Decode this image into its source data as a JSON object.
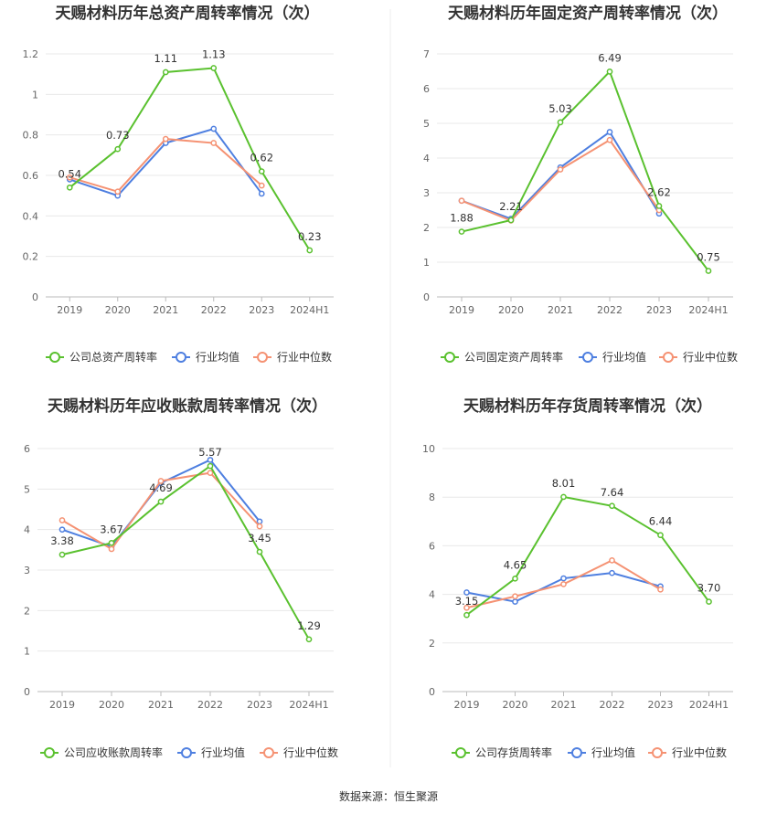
{
  "source": "数据来源：恒生聚源",
  "chart_data": [
    {
      "type": "line",
      "title": "天赐材料历年总资产周转率情况（次）",
      "categories": [
        "2019",
        "2020",
        "2021",
        "2022",
        "2023",
        "2024H1"
      ],
      "ylim": [
        0,
        1.2
      ],
      "yticks": [
        "0",
        "0.2",
        "0.4",
        "0.6",
        "0.8",
        "1",
        "1.2"
      ],
      "series": [
        {
          "name": "公司总资产周转率",
          "color": "#5ac12f",
          "values": [
            0.54,
            0.73,
            1.11,
            1.13,
            0.62,
            0.23
          ],
          "labels": [
            "0.54",
            "0.73",
            "1.11",
            "1.13",
            "0.62",
            "0.23"
          ]
        },
        {
          "name": "行业均值",
          "color": "#4e7fe0",
          "values": [
            0.58,
            0.5,
            0.76,
            0.83,
            0.51,
            null
          ]
        },
        {
          "name": "行业中位数",
          "color": "#f59273",
          "values": [
            0.59,
            0.52,
            0.78,
            0.76,
            0.55,
            null
          ]
        }
      ],
      "grid": true,
      "legend_position": "bottom"
    },
    {
      "type": "line",
      "title": "天赐材料历年固定资产周转率情况（次）",
      "categories": [
        "2019",
        "2020",
        "2021",
        "2022",
        "2023",
        "2024H1"
      ],
      "ylim": [
        0,
        7
      ],
      "yticks": [
        "0",
        "1",
        "2",
        "3",
        "4",
        "5",
        "6",
        "7"
      ],
      "series": [
        {
          "name": "公司固定资产周转率",
          "color": "#5ac12f",
          "values": [
            1.88,
            2.21,
            5.03,
            6.49,
            2.62,
            0.75
          ],
          "labels": [
            "1.88",
            "2.21",
            "5.03",
            "6.49",
            "2.62",
            "0.75"
          ]
        },
        {
          "name": "行业均值",
          "color": "#4e7fe0",
          "values": [
            2.77,
            2.25,
            3.73,
            4.75,
            2.4,
            null
          ]
        },
        {
          "name": "行业中位数",
          "color": "#f59273",
          "values": [
            2.77,
            2.2,
            3.67,
            4.52,
            2.5,
            null
          ]
        }
      ],
      "grid": true,
      "legend_position": "bottom"
    },
    {
      "type": "line",
      "title": "天赐材料历年应收账款周转率情况（次）",
      "categories": [
        "2019",
        "2020",
        "2021",
        "2022",
        "2023",
        "2024H1"
      ],
      "ylim": [
        0,
        6
      ],
      "yticks": [
        "0",
        "1",
        "2",
        "3",
        "4",
        "5",
        "6"
      ],
      "series": [
        {
          "name": "公司应收账款周转率",
          "color": "#5ac12f",
          "values": [
            3.38,
            3.67,
            4.69,
            5.57,
            3.45,
            1.29
          ],
          "labels": [
            "3.38",
            "3.67",
            "4.69",
            "5.57",
            "3.45",
            "1.29"
          ]
        },
        {
          "name": "行业均值",
          "color": "#4e7fe0",
          "values": [
            4.0,
            3.58,
            5.15,
            5.72,
            4.2,
            null
          ]
        },
        {
          "name": "行业中位数",
          "color": "#f59273",
          "values": [
            4.23,
            3.52,
            5.2,
            5.4,
            4.08,
            null
          ]
        }
      ],
      "grid": true,
      "legend_position": "bottom"
    },
    {
      "type": "line",
      "title": "天赐材料历年存货周转率情况（次）",
      "categories": [
        "2019",
        "2020",
        "2021",
        "2022",
        "2023",
        "2024H1"
      ],
      "ylim": [
        0,
        10
      ],
      "yticks": [
        "0",
        "2",
        "4",
        "6",
        "8",
        "10"
      ],
      "series": [
        {
          "name": "公司存货周转率",
          "color": "#5ac12f",
          "values": [
            3.15,
            4.65,
            8.01,
            7.64,
            6.44,
            3.7
          ],
          "labels": [
            "3.15",
            "4.65",
            "8.01",
            "7.64",
            "6.44",
            "3.70"
          ]
        },
        {
          "name": "行业均值",
          "color": "#4e7fe0",
          "values": [
            4.08,
            3.7,
            4.66,
            4.88,
            4.33,
            null
          ]
        },
        {
          "name": "行业中位数",
          "color": "#f59273",
          "values": [
            3.45,
            3.92,
            4.42,
            5.4,
            4.2,
            null
          ]
        }
      ],
      "grid": true,
      "legend_position": "bottom"
    }
  ]
}
